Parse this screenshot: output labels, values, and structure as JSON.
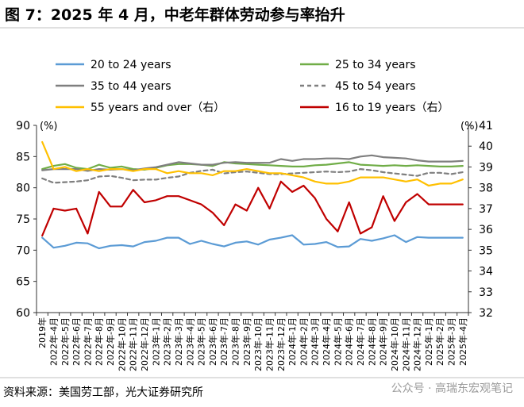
{
  "title": "图 7：2025 年 4 月，中老年群体劳动参与率抬升",
  "source": "资料来源：美国劳工部，光大证券研究所",
  "watermark": "公众号 · 高瑞东宏观笔记",
  "chart_data": {
    "type": "line",
    "left_unit": "(%)",
    "right_unit": "(%)",
    "left_axis": {
      "ticks": [
        60,
        65,
        70,
        75,
        80,
        85,
        90
      ],
      "range": [
        60,
        90
      ]
    },
    "right_axis": {
      "ticks": [
        32,
        33,
        34,
        35,
        36,
        37,
        38,
        39,
        40,
        41
      ],
      "range": [
        32,
        41
      ]
    },
    "categories": [
      "2019年",
      "2022年-4月",
      "2022年-5月",
      "2022年-6月",
      "2022年-7月",
      "2022年-8月",
      "2022年-9月",
      "2022年-10月",
      "2022年-11月",
      "2022年-12月",
      "2023年-1月",
      "2023年-2月",
      "2023年-3月",
      "2023年-4月",
      "2023年-5月",
      "2023年-6月",
      "2023年-7月",
      "2023年-8月",
      "2023年-9月",
      "2023年-10月",
      "2023年-11月",
      "2023年-12月",
      "2024年-1月",
      "2024年-2月",
      "2024年-3月",
      "2024年-4月",
      "2024年-5月",
      "2024年-6月",
      "2024年-7月",
      "2024年-8月",
      "2024年-9月",
      "2024年-10月",
      "2024年-11月",
      "2024年-12月",
      "2025年-1月",
      "2025年-2月",
      "2025年-3月",
      "2025年-4月"
    ],
    "series": [
      {
        "name": "20 to 24 years",
        "axis": "left",
        "color": "#5b9bd5",
        "dash": "",
        "values": [
          72.0,
          70.4,
          70.7,
          71.2,
          71.1,
          70.3,
          70.7,
          70.8,
          70.6,
          71.3,
          71.5,
          72.0,
          72.0,
          71.0,
          71.5,
          71.0,
          70.6,
          71.2,
          71.4,
          70.9,
          71.7,
          72.0,
          72.4,
          70.9,
          71.0,
          71.3,
          70.5,
          70.6,
          71.8,
          71.5,
          71.9,
          72.4,
          71.3,
          72.1,
          72.0,
          72.0,
          72.0,
          72.0
        ]
      },
      {
        "name": "25 to 34 years",
        "axis": "left",
        "color": "#70ad47",
        "dash": "",
        "values": [
          83.0,
          83.5,
          83.8,
          83.2,
          83.0,
          83.7,
          83.2,
          83.4,
          83.0,
          82.9,
          83.2,
          83.6,
          83.8,
          83.8,
          83.7,
          83.5,
          84.1,
          83.9,
          83.8,
          83.7,
          83.6,
          83.5,
          83.4,
          83.4,
          83.6,
          83.7,
          83.9,
          84.1,
          83.7,
          83.6,
          83.5,
          83.6,
          83.5,
          83.6,
          83.5,
          83.4,
          83.4,
          83.5
        ]
      },
      {
        "name": "35 to 44 years",
        "axis": "left",
        "color": "#7f7f7f",
        "dash": "",
        "values": [
          82.8,
          83.0,
          83.0,
          83.0,
          82.7,
          83.0,
          82.9,
          83.0,
          82.8,
          83.1,
          83.3,
          83.7,
          84.1,
          83.9,
          83.7,
          83.7,
          84.0,
          84.1,
          84.0,
          84.0,
          84.0,
          84.6,
          84.3,
          84.6,
          84.6,
          84.7,
          84.7,
          84.6,
          85.0,
          85.2,
          84.9,
          84.8,
          84.7,
          84.4,
          84.2,
          84.2,
          84.2,
          84.3
        ]
      },
      {
        "name": "45 to 54 years",
        "axis": "left",
        "color": "#7f7f7f",
        "dash": "5,4",
        "values": [
          81.5,
          80.8,
          80.9,
          81.0,
          81.2,
          81.8,
          81.9,
          81.6,
          81.2,
          81.3,
          81.3,
          81.6,
          81.8,
          82.4,
          82.7,
          82.9,
          82.3,
          82.5,
          82.6,
          82.4,
          82.2,
          82.2,
          82.3,
          82.4,
          82.5,
          82.6,
          82.5,
          82.6,
          83.0,
          82.8,
          82.5,
          82.3,
          82.1,
          81.9,
          82.4,
          82.4,
          82.2,
          82.5
        ]
      },
      {
        "name": "55 years and over（右）",
        "axis": "right",
        "color": "#ffc000",
        "dash": "",
        "values": [
          40.2,
          38.9,
          39.0,
          38.8,
          38.9,
          38.8,
          38.9,
          38.9,
          38.8,
          38.9,
          38.9,
          38.7,
          38.8,
          38.7,
          38.7,
          38.6,
          38.8,
          38.8,
          38.9,
          38.8,
          38.7,
          38.7,
          38.6,
          38.5,
          38.3,
          38.2,
          38.2,
          38.3,
          38.5,
          38.5,
          38.5,
          38.4,
          38.3,
          38.4,
          38.1,
          38.2,
          38.2,
          38.4
        ]
      },
      {
        "name": "16 to 19 years（右）",
        "axis": "right",
        "color": "#c00000",
        "dash": "",
        "values": [
          35.7,
          37.0,
          36.9,
          37.0,
          35.8,
          37.8,
          37.1,
          37.1,
          37.9,
          37.3,
          37.4,
          37.6,
          37.6,
          37.4,
          37.2,
          36.8,
          36.2,
          37.2,
          36.9,
          38.0,
          37.0,
          38.3,
          37.8,
          38.1,
          37.5,
          36.5,
          35.9,
          37.3,
          35.8,
          36.1,
          37.6,
          36.4,
          37.3,
          37.7,
          37.2,
          37.2,
          37.2,
          37.2
        ]
      }
    ]
  }
}
